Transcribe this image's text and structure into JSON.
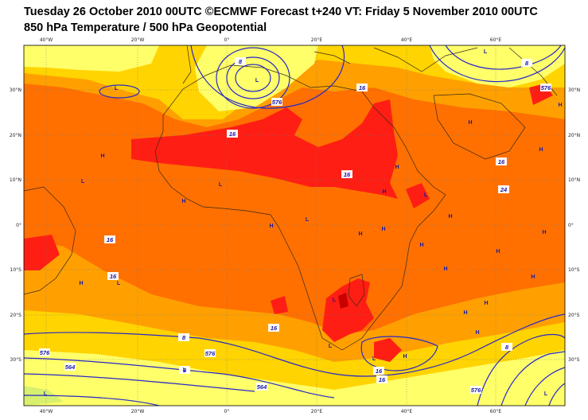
{
  "header": {
    "title_line1": "Tuesday 26 October 2010 00UTC ©ECMWF Forecast t+240 VT: Friday 5 November 2010 00UTC",
    "title_line2": "850 hPa Temperature / 500 hPa Geopotential"
  },
  "axes": {
    "lon_labels": [
      "40°W",
      "20°W",
      "0°",
      "20°E",
      "40°E",
      "60°E"
    ],
    "lat_labels": [
      "30°N",
      "20°N",
      "10°N",
      "0°",
      "10°S",
      "20°S",
      "30°S"
    ]
  },
  "colors": {
    "t_lt8": "#ffff6a",
    "t_8_16": "#ffd400",
    "t_16_20": "#ffa000",
    "t_20_24": "#ff7000",
    "t_gt24": "#ff1e14",
    "t_gt28": "#c80000",
    "cold_green": "#d7f06e",
    "contour": "#2828c8"
  },
  "contour_labels": [
    "8",
    "16",
    "576",
    "16",
    "16",
    "24",
    "16",
    "16",
    "16",
    "16",
    "8",
    "576",
    "16",
    "564",
    "8",
    "564",
    "576",
    "8",
    "16",
    "8",
    "576",
    "576"
  ],
  "pressure_marks": [
    "L",
    "L",
    "L",
    "L",
    "L",
    "L",
    "L",
    "L",
    "L",
    "L",
    "L",
    "L",
    "L",
    "L",
    "H",
    "H",
    "H",
    "H",
    "H",
    "H",
    "H",
    "H",
    "H",
    "H",
    "H",
    "H",
    "H",
    "H",
    "H",
    "H",
    "H",
    "H",
    "H",
    "H",
    "H"
  ]
}
